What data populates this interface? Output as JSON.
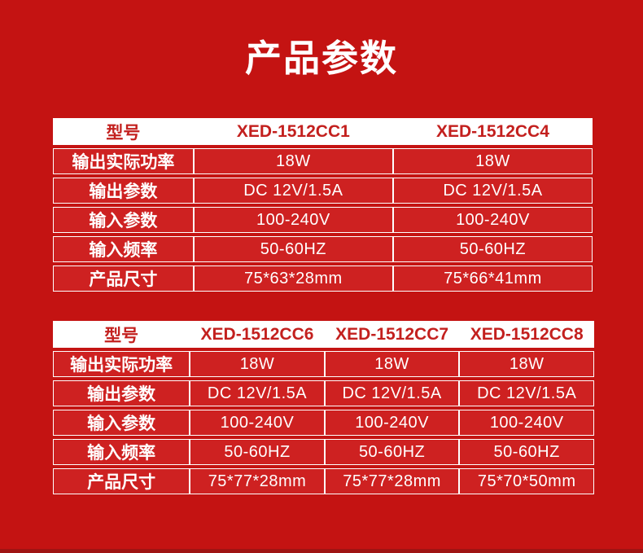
{
  "page": {
    "title": "产品参数"
  },
  "colors": {
    "page_bg": "#c41312",
    "cell_bg": "#ce2121",
    "header_text": "#c3201e",
    "bottom_strip": "#9f1413",
    "title_text": "#ffffff",
    "cell_text": "#ffffff"
  },
  "tables": [
    {
      "header": [
        "型号",
        "XED-1512CC1",
        "XED-1512CC4"
      ],
      "rows": [
        [
          "输出实际功率",
          "18W",
          "18W"
        ],
        [
          "输出参数",
          "DC 12V/1.5A",
          "DC 12V/1.5A"
        ],
        [
          "输入参数",
          "100-240V",
          "100-240V"
        ],
        [
          "输入频率",
          "50-60HZ",
          "50-60HZ"
        ],
        [
          "产品尺寸",
          "75*63*28mm",
          "75*66*41mm"
        ]
      ]
    },
    {
      "header": [
        "型号",
        "XED-1512CC6",
        "XED-1512CC7",
        "XED-1512CC8"
      ],
      "rows": [
        [
          "输出实际功率",
          "18W",
          "18W",
          "18W"
        ],
        [
          "输出参数",
          "DC 12V/1.5A",
          "DC 12V/1.5A",
          "DC 12V/1.5A"
        ],
        [
          "输入参数",
          "100-240V",
          "100-240V",
          "100-240V"
        ],
        [
          "输入频率",
          "50-60HZ",
          "50-60HZ",
          "50-60HZ"
        ],
        [
          "产品尺寸",
          "75*77*28mm",
          "75*77*28mm",
          "75*70*50mm"
        ]
      ]
    }
  ]
}
